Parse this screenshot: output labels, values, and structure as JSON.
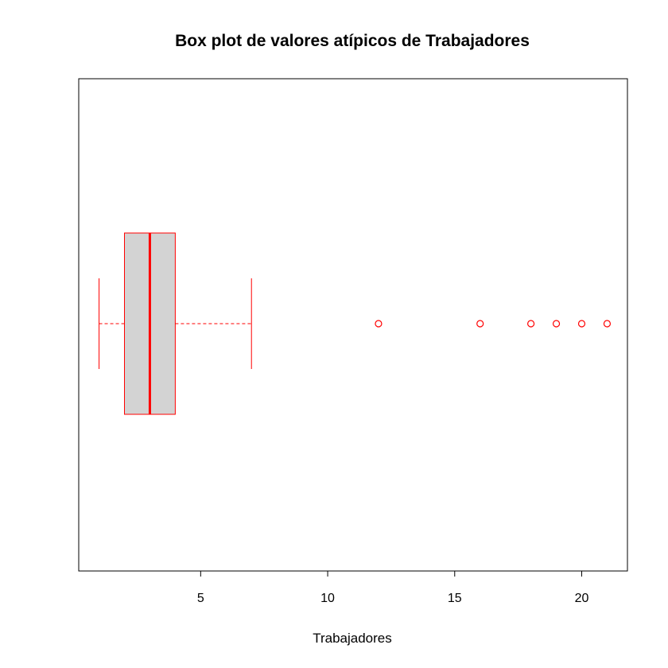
{
  "chart_data": {
    "type": "boxplot",
    "orientation": "horizontal",
    "title": "Box plot de valores atípicos de Trabajadores",
    "xlabel": "Trabajadores",
    "ylabel": "",
    "xlim": [
      0.2,
      21.8
    ],
    "x_ticks": [
      5,
      10,
      15,
      20
    ],
    "x_tick_labels": [
      "5",
      "10",
      "15",
      "20"
    ],
    "box": {
      "whisker_low": 1,
      "q1": 2,
      "median": 3,
      "q3": 4,
      "whisker_high": 7
    },
    "outliers": [
      12,
      16,
      18,
      19,
      20,
      21
    ],
    "colors": {
      "border": "#ff0000",
      "box_fill": "#d3d3d3",
      "outlier": "#ff0000",
      "axis": "#000000"
    },
    "grid": false,
    "legend": "none"
  }
}
